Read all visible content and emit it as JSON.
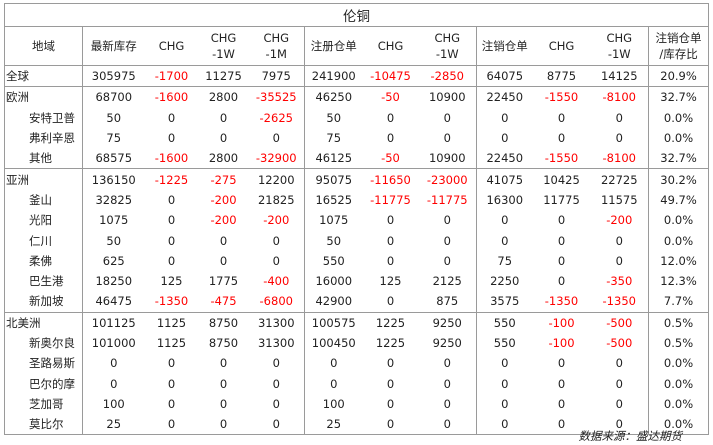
{
  "title": "伦铜",
  "headers": [
    "地域",
    "最新库存",
    "CHG",
    "CHG\n-1W",
    "CHG\n-1M",
    "注册仓单",
    "CHG",
    "CHG\n-1W",
    "注销仓单",
    "CHG",
    "CHG\n-1W",
    "注销仓单\n/库存比"
  ],
  "rows": [
    {
      "region": true,
      "cells": [
        "全球",
        "305975",
        "-1700",
        "11275",
        "7975",
        "241900",
        "-10475",
        "-2850",
        "64075",
        "8775",
        "14125",
        "20.9%"
      ]
    },
    {
      "region": true,
      "cells": [
        "欧洲",
        "68700",
        "-1600",
        "2800",
        "-35525",
        "46250",
        "-50",
        "10900",
        "22450",
        "-1550",
        "-8100",
        "32.7%"
      ]
    },
    {
      "region": false,
      "cells": [
        "安特卫普",
        "50",
        "0",
        "0",
        "-2625",
        "50",
        "0",
        "0",
        "0",
        "0",
        "0",
        "0.0%"
      ]
    },
    {
      "region": false,
      "cells": [
        "弗利辛恩",
        "75",
        "0",
        "0",
        "0",
        "75",
        "0",
        "0",
        "0",
        "0",
        "0",
        "0.0%"
      ]
    },
    {
      "region": false,
      "cells": [
        "其他",
        "68575",
        "-1600",
        "2800",
        "-32900",
        "46125",
        "-50",
        "10900",
        "22450",
        "-1550",
        "-8100",
        "32.7%"
      ]
    },
    {
      "region": true,
      "cells": [
        "亚洲",
        "136150",
        "-1225",
        "-275",
        "12200",
        "95075",
        "-11650",
        "-23000",
        "41075",
        "10425",
        "22725",
        "30.2%"
      ]
    },
    {
      "region": false,
      "cells": [
        "釜山",
        "32825",
        "0",
        "-200",
        "21825",
        "16525",
        "-11775",
        "-11775",
        "16300",
        "11775",
        "11575",
        "49.7%"
      ]
    },
    {
      "region": false,
      "cells": [
        "光阳",
        "1075",
        "0",
        "-200",
        "-200",
        "1075",
        "0",
        "0",
        "0",
        "0",
        "-200",
        "0.0%"
      ]
    },
    {
      "region": false,
      "cells": [
        "仁川",
        "50",
        "0",
        "0",
        "0",
        "50",
        "0",
        "0",
        "0",
        "0",
        "0",
        "0.0%"
      ]
    },
    {
      "region": false,
      "cells": [
        "柔佛",
        "625",
        "0",
        "0",
        "0",
        "550",
        "0",
        "0",
        "75",
        "0",
        "0",
        "12.0%"
      ]
    },
    {
      "region": false,
      "cells": [
        "巴生港",
        "18250",
        "125",
        "1775",
        "-400",
        "16000",
        "125",
        "2125",
        "2250",
        "0",
        "-350",
        "12.3%"
      ]
    },
    {
      "region": false,
      "cells": [
        "新加坡",
        "46475",
        "-1350",
        "-475",
        "-6800",
        "42900",
        "0",
        "875",
        "3575",
        "-1350",
        "-1350",
        "7.7%"
      ]
    },
    {
      "region": true,
      "cells": [
        "北美洲",
        "101125",
        "1125",
        "8750",
        "31300",
        "100575",
        "1225",
        "9250",
        "550",
        "-100",
        "-500",
        "0.5%"
      ]
    },
    {
      "region": false,
      "cells": [
        "新奥尔良",
        "101000",
        "1125",
        "8750",
        "31300",
        "100450",
        "1225",
        "9250",
        "550",
        "-100",
        "-500",
        "0.5%"
      ]
    },
    {
      "region": false,
      "cells": [
        "圣路易斯",
        "0",
        "0",
        "0",
        "0",
        "0",
        "0",
        "0",
        "0",
        "0",
        "0",
        "0.0%"
      ]
    },
    {
      "region": false,
      "cells": [
        "巴尔的摩",
        "0",
        "0",
        "0",
        "0",
        "0",
        "0",
        "0",
        "0",
        "0",
        "0",
        "0.0%"
      ]
    },
    {
      "region": false,
      "cells": [
        "芝加哥",
        "100",
        "0",
        "0",
        "0",
        "100",
        "0",
        "0",
        "0",
        "0",
        "0",
        "0.0%"
      ]
    },
    {
      "region": false,
      "cells": [
        "莫比尔",
        "25",
        "0",
        "0",
        "0",
        "25",
        "0",
        "0",
        "0",
        "0",
        "0",
        "0.0%"
      ]
    }
  ],
  "footer": "数据来源：盛达期货"
}
